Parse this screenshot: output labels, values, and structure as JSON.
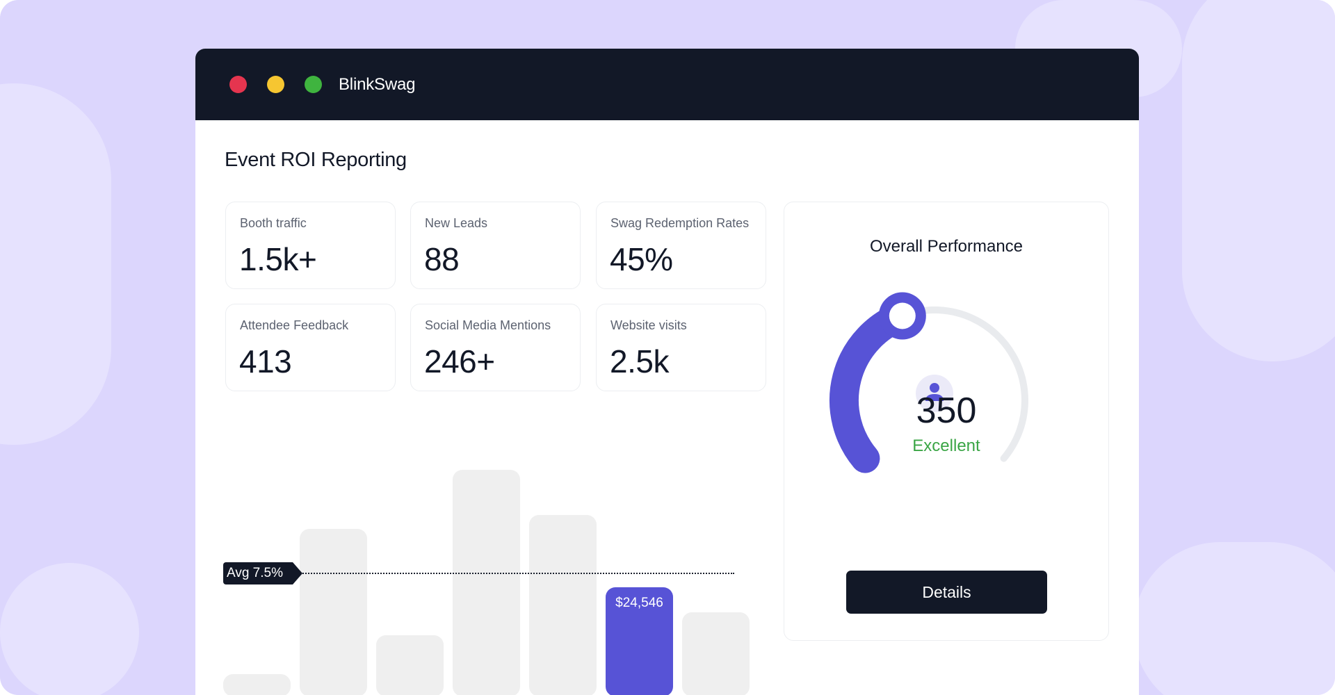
{
  "app": {
    "title": "BlinkSwag"
  },
  "window_controls": {
    "close_color": "#e5354f",
    "minimize_color": "#f6c631",
    "maximize_color": "#3fb43f"
  },
  "page": {
    "title": "Event ROI Reporting"
  },
  "stats": [
    {
      "label": "Booth traffic",
      "value": "1.5k+"
    },
    {
      "label": "New Leads",
      "value": "88"
    },
    {
      "label": "Swag Redemption Rates",
      "value": "45%"
    },
    {
      "label": "Attendee Feedback",
      "value": "413"
    },
    {
      "label": "Social Media Mentions",
      "value": "246+"
    },
    {
      "label": "Website visits",
      "value": "2.5k"
    }
  ],
  "chart": {
    "avg_label": "Avg 7.5%",
    "highlight_label": "$24,546",
    "highlight_index": 5,
    "accent": "#5753d6",
    "bar_color": "#efefef"
  },
  "chart_data": {
    "type": "bar",
    "values": [
      8,
      60,
      22,
      81,
      65,
      39,
      30
    ],
    "avg_line_label": "Avg 7.5%",
    "highlight": {
      "index": 5,
      "label": "$24,546"
    },
    "axes_visible": false,
    "grid": false
  },
  "performance": {
    "title": "Overall Performance",
    "score": "350",
    "rating": "Excellent",
    "rating_color": "#3aa545",
    "fill_fraction": 0.42,
    "avatar_icon": "user-icon",
    "details_label": "Details"
  }
}
